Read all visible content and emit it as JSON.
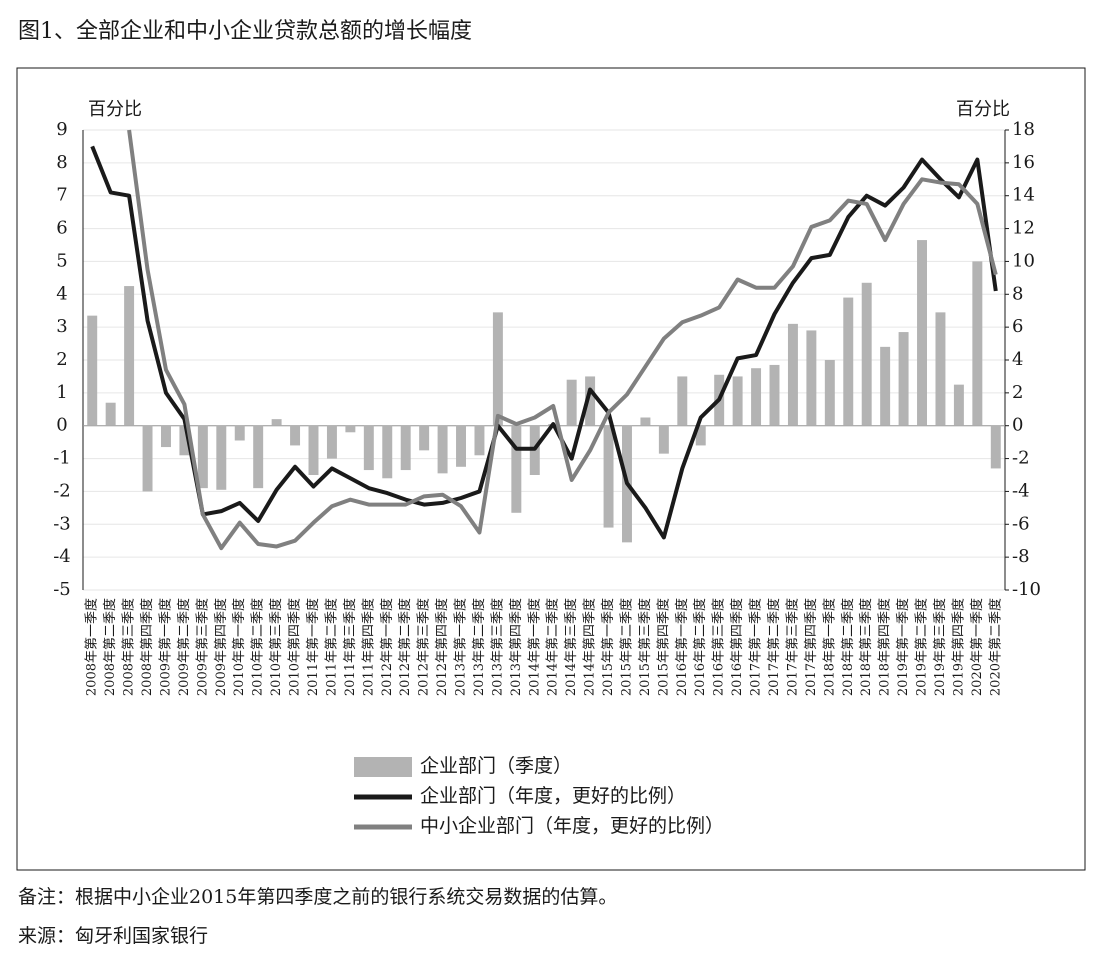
{
  "chart_data": {
    "type": "bar-line",
    "title": "图1、全部企业和中小企业贷款总额的增长幅度",
    "y_label": "百分比",
    "y2_label": "百分比",
    "note": "备注：根据中小企业2015年第四季度之前的银行系统交易数据的估算。",
    "source": "来源：匈牙利国家银行",
    "categories": [
      "2008年第一季度",
      "2008年第二季度",
      "2008年第三季度",
      "2008年第四季度",
      "2009年第一季度",
      "2009年第二季度",
      "2009年第三季度",
      "2009年第四季度",
      "2010年第一季度",
      "2010年第二季度",
      "2010年第三季度",
      "2010年第四季度",
      "2011年第一季度",
      "2011年第二季度",
      "2011年第三季度",
      "2011年第四季度",
      "2012年第一季度",
      "2012年第二季度",
      "2012年第三季度",
      "2012年第四季度",
      "2013年第一季度",
      "2013年第二季度",
      "2013年第三季度",
      "2013年第四季度",
      "2014年第一季度",
      "2014年第二季度",
      "2014年第三季度",
      "2014年第四季度",
      "2015年第一季度",
      "2015年第二季度",
      "2015年第三季度",
      "2015年第四季度",
      "2016年第一季度",
      "2016年第二季度",
      "2016年第三季度",
      "2016年第四季度",
      "2017年第一季度",
      "2017年第二季度",
      "2017年第三季度",
      "2017年第四季度",
      "2018年第一季度",
      "2018年第二季度",
      "2018年第三季度",
      "2018年第四季度",
      "2019年第一季度",
      "2019年第二季度",
      "2019年第三季度",
      "2019年第四季度",
      "2020年第一季度",
      "2020年第二季度"
    ],
    "series": [
      {
        "name": "企业部门（季度）",
        "kind": "bar",
        "color": "#b3b3b3",
        "values": [
          3.35,
          0.7,
          4.25,
          -2.0,
          -0.65,
          -0.9,
          -1.9,
          -1.95,
          -0.45,
          -1.9,
          0.2,
          -0.6,
          -1.5,
          -1.0,
          -0.2,
          -1.35,
          -1.6,
          -1.35,
          -0.75,
          -1.45,
          -1.25,
          -0.9,
          3.45,
          -2.65,
          -1.5,
          0.05,
          1.4,
          1.5,
          -3.1,
          -3.55,
          0.25,
          -0.85,
          1.5,
          -0.6,
          1.55,
          1.5,
          1.75,
          1.85,
          3.1,
          2.9,
          2.0,
          3.9,
          4.35,
          2.4,
          2.85,
          5.65,
          3.45,
          1.25,
          5.0,
          -1.3
        ]
      },
      {
        "name": "企业部门（年度，更好的比例）",
        "kind": "line",
        "color": "#1a1a1a",
        "values": [
          8.5,
          7.1,
          7.0,
          3.2,
          1.0,
          0.2,
          -2.7,
          -2.6,
          -2.35,
          -2.9,
          -1.95,
          -1.25,
          -1.85,
          -1.3,
          -1.6,
          -1.9,
          -2.05,
          -2.25,
          -2.4,
          -2.35,
          -2.2,
          -2.0,
          0.0,
          -0.7,
          -0.7,
          0.05,
          -1.0,
          1.1,
          0.4,
          -1.75,
          -2.5,
          -3.4,
          -1.3,
          0.25,
          0.8,
          2.05,
          2.15,
          3.4,
          4.35,
          5.1,
          5.2,
          6.35,
          7.0,
          6.7,
          7.25,
          8.1,
          7.5,
          6.95,
          8.1,
          4.1
        ]
      },
      {
        "name": "中小企业部门（年度，更好的比例）",
        "kind": "line",
        "axis": "y2",
        "color": "#808080",
        "values": [
          null,
          null,
          18,
          9.5,
          3.4,
          1.3,
          -5.4,
          -7.45,
          -5.9,
          -7.2,
          -7.35,
          -7.0,
          -5.9,
          -4.9,
          -4.5,
          -4.8,
          -4.8,
          -4.8,
          -4.3,
          -4.2,
          -4.9,
          -6.5,
          0.6,
          0.1,
          0.5,
          1.2,
          -3.3,
          -1.5,
          0.8,
          1.9,
          3.6,
          5.3,
          6.3,
          6.7,
          7.2,
          8.9,
          8.4,
          8.4,
          9.7,
          12.1,
          12.5,
          13.7,
          13.5,
          11.3,
          13.5,
          15.0,
          14.8,
          14.7,
          13.5,
          9.2
        ]
      }
    ],
    "ylim": [
      -5,
      9
    ],
    "yticks": [
      -5,
      -4,
      -3,
      -2,
      -1,
      0,
      1,
      2,
      3,
      4,
      5,
      6,
      7,
      8,
      9
    ],
    "y2lim": [
      -10,
      18
    ],
    "y2ticks": [
      -10,
      -8,
      -6,
      -4,
      -2,
      0,
      2,
      4,
      6,
      8,
      10,
      12,
      14,
      16,
      18
    ],
    "grid": true
  }
}
